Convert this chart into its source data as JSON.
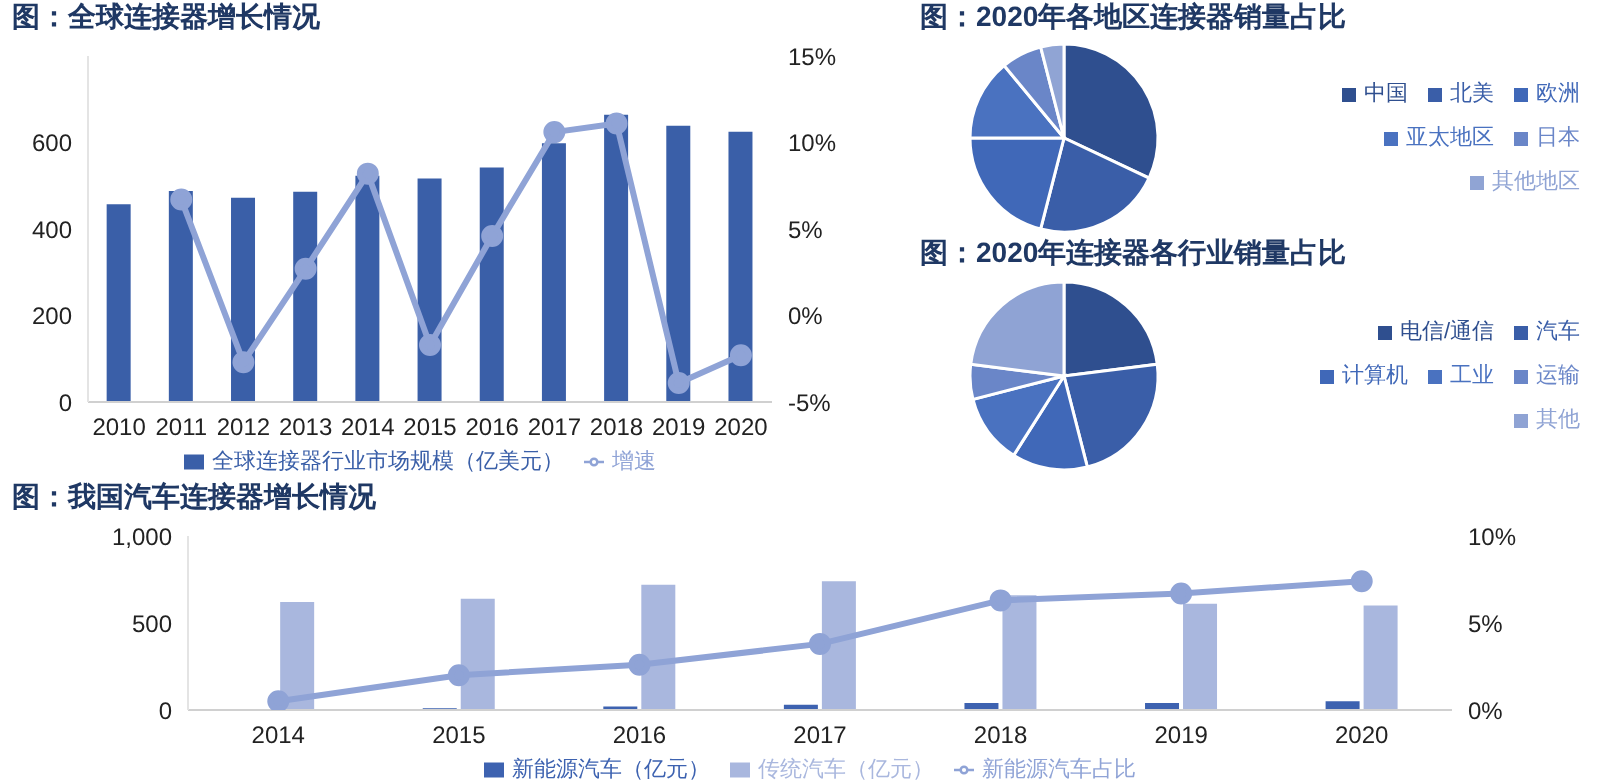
{
  "chart_data": [
    {
      "type": "bar",
      "title": "图：全球连接器增长情况",
      "categories": [
        "2010",
        "2011",
        "2012",
        "2013",
        "2014",
        "2015",
        "2016",
        "2017",
        "2018",
        "2019",
        "2020"
      ],
      "series": [
        {
          "name": "全球连接器行业市场规模（亿美元）",
          "color": "#3a5fa8",
          "values": [
            457,
            488,
            472,
            486,
            523,
            517,
            542,
            598,
            664,
            639,
            625
          ]
        },
        {
          "name": "增速",
          "type": "line",
          "axis": "y2",
          "color": "#8fa3d6",
          "values": [
            null,
            6.7,
            -2.7,
            2.7,
            8.2,
            -1.7,
            4.6,
            10.6,
            11.1,
            -3.9,
            -2.3
          ]
        }
      ],
      "ylim": [
        0,
        800
      ],
      "yticks": [
        0,
        200,
        400,
        600
      ],
      "y2lim": [
        -5,
        15
      ],
      "y2ticks": [
        {
          "value": -5,
          "label": "-5%"
        },
        {
          "value": 0,
          "label": "0%"
        },
        {
          "value": 5,
          "label": "5%"
        },
        {
          "value": 10,
          "label": "10%"
        },
        {
          "value": 15,
          "label": "15%"
        }
      ],
      "marker": "circle",
      "legend": "bottom",
      "grid": false
    },
    {
      "type": "pie",
      "title": "图：2020年各地区连接器销量占比",
      "categories": [
        "中国",
        "北美",
        "欧洲",
        "亚太地区",
        "日本",
        "其他地区"
      ],
      "values": [
        32,
        22,
        21,
        14,
        7,
        4
      ],
      "colors": [
        "#2f4f8f",
        "#3a5ea8",
        "#4068b8",
        "#4a72c0",
        "#6a86c8",
        "#90a4d4"
      ],
      "legend": "right"
    },
    {
      "type": "pie",
      "title": "图：2020年连接器各行业销量占比",
      "categories": [
        "电信/通信",
        "汽车",
        "计算机",
        "工业",
        "运输",
        "其他"
      ],
      "values": [
        23,
        23,
        13,
        12,
        6,
        23
      ],
      "colors": [
        "#2f4f8f",
        "#3a5ea8",
        "#4068b8",
        "#4a72c0",
        "#6a86c8",
        "#8fa3d4"
      ],
      "legend": "right"
    },
    {
      "type": "bar",
      "title": "图：我国汽车连接器增长情况",
      "categories": [
        "2014",
        "2015",
        "2016",
        "2017",
        "2018",
        "2019",
        "2020"
      ],
      "series": [
        {
          "name": "新能源汽车（亿元）",
          "color": "#3d62b0",
          "values": [
            null,
            10,
            20,
            30,
            40,
            40,
            50
          ]
        },
        {
          "name": "传统汽车（亿元）",
          "color": "#a9b7de",
          "values": [
            620,
            640,
            720,
            740,
            660,
            610,
            600
          ]
        },
        {
          "name": "新能源汽车占比",
          "type": "line",
          "axis": "y2",
          "color": "#8fa3d6",
          "values": [
            0.5,
            2.0,
            2.6,
            3.8,
            6.3,
            6.7,
            7.4
          ]
        }
      ],
      "ylim": [
        0,
        1000
      ],
      "yticks": [
        0,
        500,
        {
          "value": 1000,
          "label": "1,000"
        }
      ],
      "y2lim": [
        0,
        10
      ],
      "y2ticks": [
        {
          "value": 0,
          "label": "0%"
        },
        {
          "value": 5,
          "label": "5%"
        },
        {
          "value": 10,
          "label": "10%"
        }
      ],
      "marker": "circle",
      "legend": "bottom",
      "grid": false
    }
  ]
}
